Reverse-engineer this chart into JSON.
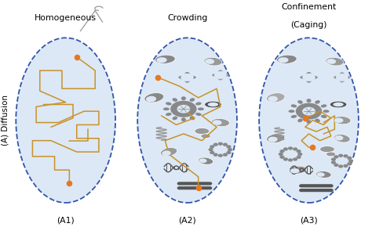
{
  "background_color": "#ffffff",
  "ellipse_fill": "#dce8f5",
  "ellipse_edge": "#3355aa",
  "orange_dot": "#e87820",
  "path_color": "#c8922a",
  "gray1": "#888888",
  "gray2": "#999999",
  "gray3": "#aaaaaa",
  "dark_gray": "#555555",
  "labels": [
    "Homogeneous",
    "Crowding",
    "Confinement\n(Caging)"
  ],
  "sublabels": [
    "(A1)",
    "(A2)",
    "(A3)"
  ],
  "ylabel": "(A) Diffusion"
}
